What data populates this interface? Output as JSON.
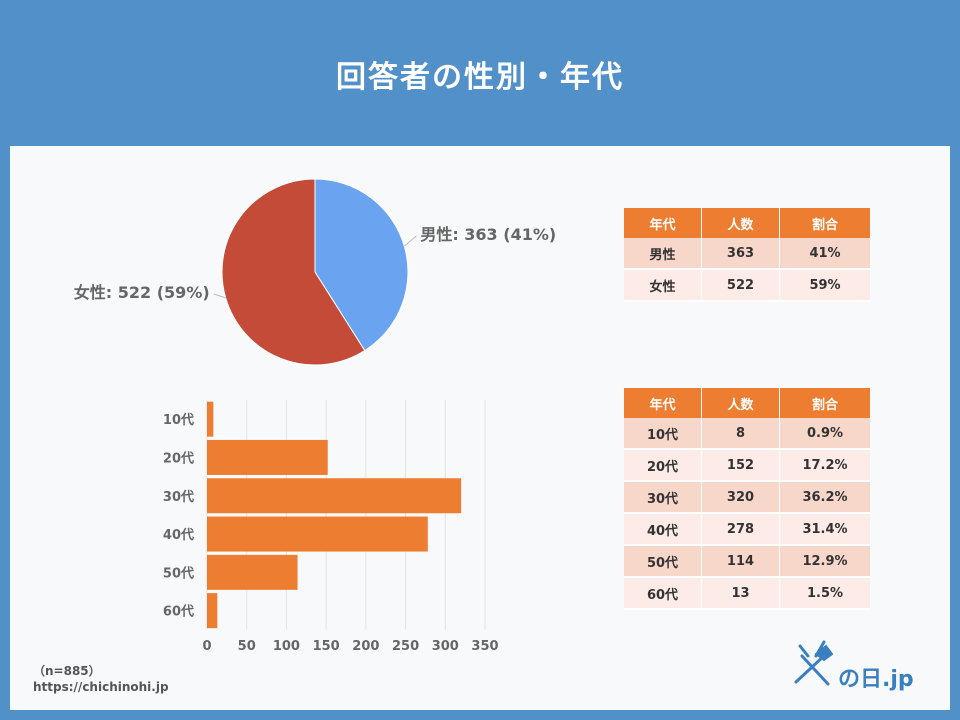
{
  "title": "回答者の性別・年代",
  "gender_table": {
    "headers": [
      "年代",
      "人数",
      "割合"
    ],
    "rows": [
      [
        "男性",
        "363",
        "41%"
      ],
      [
        "女性",
        "522",
        "59%"
      ]
    ]
  },
  "age_table": {
    "headers": [
      "年代",
      "人数",
      "割合"
    ],
    "rows": [
      [
        "10代",
        "8",
        "0.9%"
      ],
      [
        "20代",
        "152",
        "17.2%"
      ],
      [
        "30代",
        "320",
        "36.2%"
      ],
      [
        "40代",
        "278",
        "31.4%"
      ],
      [
        "50代",
        "114",
        "12.9%"
      ],
      [
        "60代",
        "13",
        "1.5%"
      ]
    ]
  },
  "footnote": {
    "sample": "（n=885）",
    "url": "https://chichinohi.jp"
  },
  "logo_text": "の日.jp",
  "chart_data": [
    {
      "type": "pie",
      "categories": [
        "男性",
        "女性"
      ],
      "values": [
        363,
        522
      ],
      "labels": [
        "男性: 363 (41%)",
        "女性: 522 (59%)"
      ],
      "colors": [
        "#6aa4f0",
        "#c34b37"
      ]
    },
    {
      "type": "bar",
      "orientation": "horizontal",
      "categories": [
        "10代",
        "20代",
        "30代",
        "40代",
        "50代",
        "60代"
      ],
      "values": [
        8,
        152,
        320,
        278,
        114,
        13
      ],
      "xlim": [
        0,
        350
      ],
      "xticks": [
        0,
        50,
        100,
        150,
        200,
        250,
        300,
        350
      ],
      "grid": true,
      "color": "#ed7d31"
    }
  ]
}
